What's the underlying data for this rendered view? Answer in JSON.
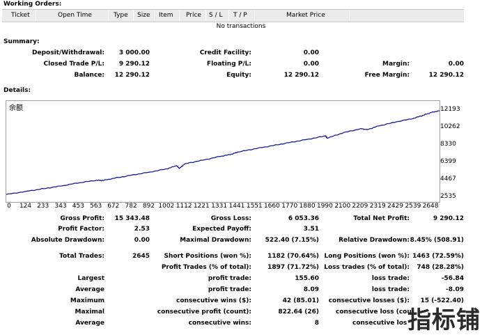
{
  "working_orders": {
    "title": "Working Orders:",
    "columns": [
      "Ticket",
      "Open Time",
      "Type",
      "Size",
      "Item",
      "Price",
      "S / L",
      "T / P",
      "Market Price"
    ],
    "empty_text": "No transactions"
  },
  "summary": {
    "title": "Summary:",
    "deposit_label": "Deposit/Withdrawal:",
    "deposit_value": "3 000.00",
    "credit_label": "Credit Facility:",
    "credit_value": "0.00",
    "closed_label": "Closed Trade P/L:",
    "closed_value": "9 290.12",
    "floating_label": "Floating P/L:",
    "floating_value": "0.00",
    "margin_label": "Margin:",
    "margin_value": "0.00",
    "balance_label": "Balance:",
    "balance_value": "12 290.12",
    "equity_label": "Equity:",
    "equity_value": "12 290.12",
    "free_margin_label": "Free Margin:",
    "free_margin_value": "12 290.12"
  },
  "details": {
    "title": "Details:"
  },
  "chart_data": {
    "type": "line",
    "title": "余额",
    "xlabel": "",
    "ylabel": "",
    "x_ticks": [
      "0",
      "124",
      "233",
      "343",
      "453",
      "563",
      "672",
      "782",
      "892",
      "1002",
      "1112",
      "1221",
      "1331",
      "1441",
      "1551",
      "1660",
      "1770",
      "1880",
      "1990",
      "2100",
      "2209",
      "2319",
      "2429",
      "2539",
      "2648"
    ],
    "y_ticks": [
      "12193",
      "10262",
      "8330",
      "6399",
      "4467",
      "2535"
    ],
    "xlim": [
      0,
      2700
    ],
    "ylim": [
      2535,
      12193
    ],
    "grid": false,
    "series": [
      {
        "color": "#1a1aa0",
        "x": [
          0,
          124,
          233,
          343,
          453,
          563,
          600,
          672,
          782,
          892,
          1002,
          1060,
          1080,
          1112,
          1221,
          1331,
          1400,
          1441,
          1551,
          1660,
          1770,
          1880,
          1990,
          2000,
          2100,
          2209,
          2250,
          2319,
          2429,
          2539,
          2600,
          2648,
          2700
        ],
        "y": [
          2900,
          3250,
          3550,
          3850,
          4200,
          4480,
          4450,
          4700,
          5050,
          5380,
          5750,
          6100,
          5800,
          6300,
          6700,
          7120,
          7350,
          7600,
          7980,
          8320,
          8680,
          9030,
          9400,
          9150,
          9750,
          10200,
          10100,
          10500,
          10950,
          11350,
          11700,
          12000,
          12193
        ]
      }
    ]
  },
  "stats": {
    "gross_profit_label": "Gross Profit:",
    "gross_profit_value": "15 343.48",
    "gross_loss_label": "Gross Loss:",
    "gross_loss_value": "6 053.36",
    "total_net_label": "Total Net Profit:",
    "total_net_value": "9 290.12",
    "profit_factor_label": "Profit Factor:",
    "profit_factor_value": "2.53",
    "expected_payoff_label": "Expected Payoff:",
    "expected_payoff_value": "3.51",
    "abs_dd_label": "Absolute Drawdown:",
    "abs_dd_value": "0.00",
    "max_dd_label": "Maximal Drawdown:",
    "max_dd_value": "522.40 (7.15%)",
    "rel_dd_label": "Relative Drawdown:",
    "rel_dd_value": "8.45% (508.91)",
    "total_trades_label": "Total Trades:",
    "total_trades_value": "2645",
    "short_label": "Short Positions (won %):",
    "short_value": "1182 (70.64%)",
    "long_label": "Long Positions (won %):",
    "long_value": "1463 (72.59%)",
    "profit_trades_label": "Profit Trades (% of total):",
    "profit_trades_value": "1897 (71.72%)",
    "loss_trades_label": "Loss trades (% of total):",
    "loss_trades_value": "748 (28.28%)",
    "largest_label": "Largest",
    "largest_profit_label": "profit trade:",
    "largest_profit_value": "155.60",
    "largest_loss_label": "loss trade:",
    "largest_loss_value": "-56.84",
    "average_label": "Average",
    "average_profit_label": "profit trade:",
    "average_profit_value": "8.09",
    "average_loss_label": "loss trade:",
    "average_loss_value": "-8.09",
    "maximum_label": "Maximum",
    "max_cons_wins_label": "consecutive wins ($):",
    "max_cons_wins_value": "42 (85.01)",
    "max_cons_losses_label": "consecutive losses ($):",
    "max_cons_losses_value": "15 (-522.40)",
    "maximal_label": "Maximal",
    "maximal_profit_label": "consecutive profit (count):",
    "maximal_profit_value": "822.64 (26)",
    "maximal_loss_label": "consecutive loss (cou",
    "maximal_loss_value": "",
    "average2_label": "Average",
    "avg_cons_wins_label": "consecutive wins:",
    "avg_cons_wins_value": "8",
    "avg_cons_losses_label": "consecutive los"
  },
  "watermark": "指标铺"
}
